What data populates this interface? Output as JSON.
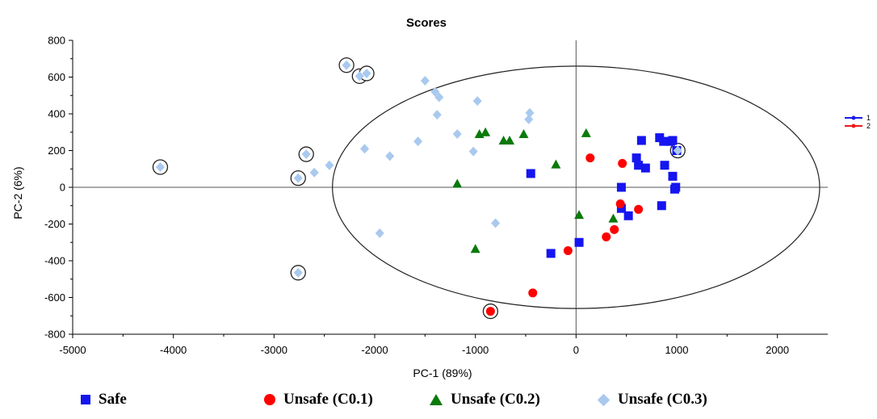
{
  "chart_data": {
    "type": "scatter",
    "title": "Scores",
    "xlabel": "PC-1 (89%)",
    "ylabel": "PC-2 (6%)",
    "xlim": [
      -5000,
      2500
    ],
    "ylim": [
      -800,
      800
    ],
    "xticks": [
      "-5000",
      "-4000",
      "-3000",
      "-2000",
      "-1000",
      "0",
      "1000",
      "2000"
    ],
    "yticks": [
      "800",
      "600",
      "400",
      "200",
      "0",
      "-200",
      "-400",
      "-600",
      "-800"
    ],
    "ellipse": {
      "center": [
        0,
        0
      ],
      "rx": 2420,
      "ry": 660
    },
    "series": [
      {
        "name": "Safe",
        "color": "#1515f0",
        "marker": "square",
        "points": [
          [
            -450,
            75
          ],
          [
            -250,
            -360
          ],
          [
            30,
            -300
          ],
          [
            450,
            0
          ],
          [
            450,
            -115
          ],
          [
            520,
            -155
          ],
          [
            600,
            160
          ],
          [
            620,
            120
          ],
          [
            650,
            255
          ],
          [
            690,
            105
          ],
          [
            830,
            270
          ],
          [
            870,
            250
          ],
          [
            880,
            120
          ],
          [
            850,
            -100
          ],
          [
            940,
            250
          ],
          [
            960,
            255
          ],
          [
            960,
            60
          ],
          [
            980,
            -10
          ],
          [
            990,
            0
          ],
          [
            1000,
            200
          ]
        ]
      },
      {
        "name": "Unsafe (C0.1)",
        "color": "#ff0000",
        "marker": "circle",
        "points": [
          [
            140,
            160
          ],
          [
            460,
            130
          ],
          [
            440,
            -90
          ],
          [
            620,
            -120
          ],
          [
            380,
            -230
          ],
          [
            300,
            -270
          ],
          [
            -80,
            -345
          ],
          [
            -430,
            -575
          ],
          [
            -850,
            -675
          ]
        ]
      },
      {
        "name": "Unsafe (C0.2)",
        "color": "#0a7a0a",
        "marker": "triangle",
        "points": [
          [
            -900,
            300
          ],
          [
            -960,
            290
          ],
          [
            -720,
            255
          ],
          [
            -660,
            255
          ],
          [
            -520,
            290
          ],
          [
            -200,
            125
          ],
          [
            100,
            295
          ],
          [
            -1180,
            20
          ],
          [
            30,
            -150
          ],
          [
            370,
            -170
          ],
          [
            -1000,
            -335
          ]
        ]
      },
      {
        "name": "Unsafe (C0.3)",
        "color": "#a9c9ee",
        "marker": "diamond",
        "points": [
          [
            -1500,
            580
          ],
          [
            -1400,
            520
          ],
          [
            -1360,
            490
          ],
          [
            -1380,
            395
          ],
          [
            -1180,
            290
          ],
          [
            -1570,
            250
          ],
          [
            -1850,
            170
          ],
          [
            -2100,
            210
          ],
          [
            -2450,
            120
          ],
          [
            -1020,
            195
          ],
          [
            -980,
            470
          ],
          [
            -460,
            405
          ],
          [
            -470,
            370
          ],
          [
            -800,
            -195
          ],
          [
            -1950,
            -250
          ],
          [
            -4130,
            110
          ],
          [
            -2760,
            50
          ],
          [
            -2680,
            180
          ],
          [
            -2280,
            665
          ],
          [
            -2150,
            605
          ],
          [
            -2080,
            620
          ],
          [
            -2760,
            -465
          ],
          [
            -2600,
            80
          ],
          [
            1010,
            200
          ]
        ]
      }
    ],
    "outlier_circles": [
      [
        -4130,
        110
      ],
      [
        -2760,
        50
      ],
      [
        -2680,
        180
      ],
      [
        -2280,
        665
      ],
      [
        -2150,
        605
      ],
      [
        -2080,
        620
      ],
      [
        -2760,
        -465
      ],
      [
        -850,
        -675
      ],
      [
        1010,
        200
      ]
    ],
    "side_legend": [
      {
        "label": "1",
        "color": "#1a1aee"
      },
      {
        "label": "2",
        "color": "#ee1a1a"
      }
    ]
  }
}
